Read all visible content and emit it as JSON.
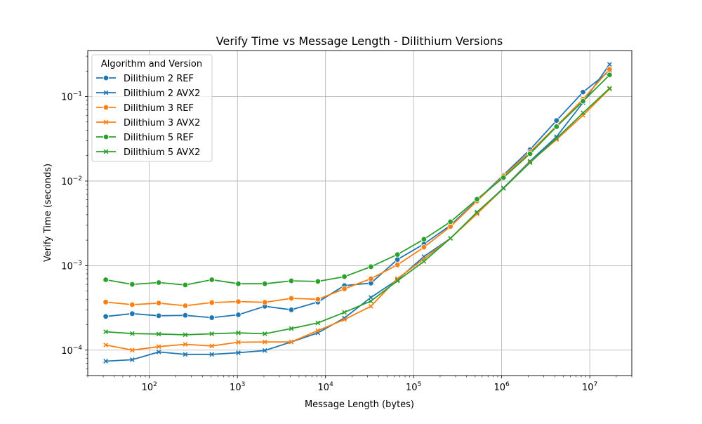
{
  "chart_data": {
    "type": "line",
    "title": "Verify Time vs Message Length - Dilithium Versions",
    "xlabel": "Message Length (bytes)",
    "ylabel": "Verify Time (seconds)",
    "xscale": "log",
    "yscale": "log",
    "xlim": [
      20,
      30000000
    ],
    "ylim": [
      5e-05,
      0.35
    ],
    "grid": true,
    "legend_title": "Algorithm and Version",
    "legend_position": "top-left",
    "x_ticks": [
      {
        "value": 100,
        "base": "10",
        "exp": "2"
      },
      {
        "value": 1000,
        "base": "10",
        "exp": "3"
      },
      {
        "value": 10000,
        "base": "10",
        "exp": "4"
      },
      {
        "value": 100000,
        "base": "10",
        "exp": "5"
      },
      {
        "value": 1000000,
        "base": "10",
        "exp": "6"
      },
      {
        "value": 10000000,
        "base": "10",
        "exp": "7"
      }
    ],
    "y_ticks": [
      {
        "value": 0.0001,
        "base": "10",
        "exp": "−4"
      },
      {
        "value": 0.001,
        "base": "10",
        "exp": "−3"
      },
      {
        "value": 0.01,
        "base": "10",
        "exp": "−2"
      },
      {
        "value": 0.1,
        "base": "10",
        "exp": "−1"
      }
    ],
    "x": [
      32,
      64,
      128,
      256,
      512,
      1024,
      2048,
      4096,
      8192,
      16384,
      32768,
      65536,
      131072,
      262144,
      524288,
      1048576,
      2097152,
      4194304,
      8388608,
      16777216
    ],
    "series": [
      {
        "name": "Dilithium 2 REF",
        "color": "#1f77b4",
        "marker": "circle",
        "values": [
          0.00025,
          0.00027,
          0.000255,
          0.000258,
          0.000242,
          0.000262,
          0.00033,
          0.0003,
          0.00037,
          0.00058,
          0.00062,
          0.00118,
          0.0018,
          0.003,
          0.0059,
          0.0118,
          0.0235,
          0.052,
          0.113,
          0.2
        ]
      },
      {
        "name": "Dilithium 2 AVX2",
        "color": "#1f77b4",
        "marker": "x",
        "values": [
          7.4e-05,
          7.7e-05,
          9.5e-05,
          8.9e-05,
          8.9e-05,
          9.3e-05,
          9.9e-05,
          0.000125,
          0.00016,
          0.00024,
          0.00042,
          0.00068,
          0.00128,
          0.0021,
          0.0042,
          0.0083,
          0.0172,
          0.0335,
          0.085,
          0.24
        ]
      },
      {
        "name": "Dilithium 3 REF",
        "color": "#ff7f0e",
        "marker": "circle",
        "values": [
          0.00037,
          0.000345,
          0.00036,
          0.000335,
          0.000365,
          0.000375,
          0.000368,
          0.00041,
          0.0004,
          0.00053,
          0.0007,
          0.00102,
          0.00165,
          0.0029,
          0.0058,
          0.0115,
          0.022,
          0.045,
          0.093,
          0.21
        ]
      },
      {
        "name": "Dilithium 3 AVX2",
        "color": "#ff7f0e",
        "marker": "x",
        "values": [
          0.000115,
          0.0001,
          0.00011,
          0.000117,
          0.000112,
          0.000124,
          0.000125,
          0.000125,
          0.00017,
          0.00023,
          0.00033,
          0.0007,
          0.0012,
          0.0021,
          0.0041,
          0.0082,
          0.0168,
          0.031,
          0.06,
          0.123
        ]
      },
      {
        "name": "Dilithium 5 REF",
        "color": "#2ca02c",
        "marker": "circle",
        "values": [
          0.00068,
          0.0006,
          0.00063,
          0.00059,
          0.00068,
          0.00061,
          0.00061,
          0.00066,
          0.00065,
          0.00074,
          0.00097,
          0.00135,
          0.00205,
          0.0033,
          0.0061,
          0.011,
          0.021,
          0.044,
          0.088,
          0.18
        ]
      },
      {
        "name": "Dilithium 5 AVX2",
        "color": "#2ca02c",
        "marker": "x",
        "values": [
          0.000165,
          0.000157,
          0.000155,
          0.000152,
          0.000156,
          0.00016,
          0.000156,
          0.00018,
          0.00021,
          0.00028,
          0.00038,
          0.00066,
          0.00112,
          0.0021,
          0.0043,
          0.0082,
          0.0165,
          0.032,
          0.064,
          0.125
        ]
      }
    ]
  }
}
